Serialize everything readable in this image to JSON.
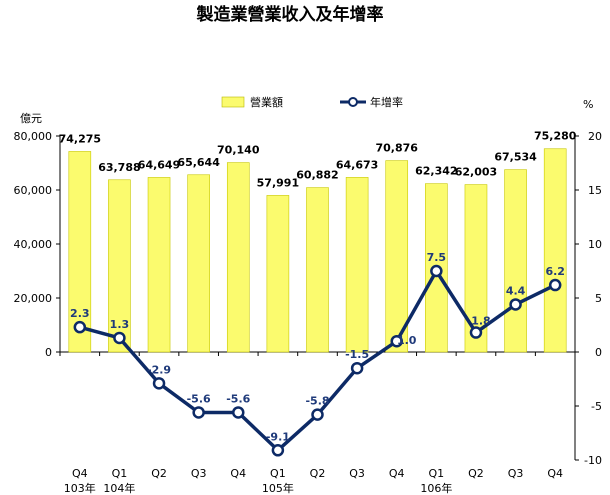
{
  "chart_data": {
    "type": "bar+line",
    "title": "製造業營業收入及年增率",
    "categories": [
      "Q4",
      "Q1",
      "Q2",
      "Q3",
      "Q4",
      "Q1",
      "Q2",
      "Q3",
      "Q4",
      "Q1",
      "Q2",
      "Q3",
      "Q4"
    ],
    "year_labels": [
      {
        "index": 0,
        "label": "103年"
      },
      {
        "index": 1,
        "label": "104年"
      },
      {
        "index": 5,
        "label": "105年"
      },
      {
        "index": 9,
        "label": "106年"
      }
    ],
    "series": [
      {
        "name": "營業額",
        "type": "bar",
        "axis": "left",
        "color": "#fbfb6e",
        "values": [
          74275,
          63788,
          64649,
          65644,
          70140,
          57991,
          60882,
          64673,
          70876,
          62342,
          62003,
          67534,
          75280
        ],
        "labels": [
          "74,275",
          "63,788",
          "64,649",
          "65,644",
          "70,140",
          "57,991",
          "60,882",
          "64,673",
          "70,876",
          "62,342",
          "62,003",
          "67,534",
          "75,280"
        ]
      },
      {
        "name": "年增率",
        "type": "line",
        "axis": "right",
        "color": "#0d2a66",
        "values": [
          2.3,
          1.3,
          -2.9,
          -5.6,
          -5.6,
          -9.1,
          -5.8,
          -1.5,
          1.0,
          7.5,
          1.8,
          4.4,
          6.2
        ],
        "labels": [
          "2.3",
          "1.3",
          "-2.9",
          "-5.6",
          "-5.6",
          "-9.1",
          "-5.8",
          "-1.5",
          "1.0",
          "7.5",
          "1.8",
          "4.4",
          "6.2"
        ]
      }
    ],
    "left_axis": {
      "unit": "億元",
      "ticks": [
        0,
        20000,
        40000,
        60000,
        80000
      ],
      "tick_labels": [
        "0",
        "20,000",
        "40,000",
        "60,000",
        "80,000"
      ]
    },
    "right_axis": {
      "unit": "%",
      "ylim": [
        -10,
        20
      ],
      "ticks": [
        -10,
        -5,
        0,
        5,
        10,
        15,
        20
      ],
      "tick_labels": [
        "-10",
        "-5",
        "0",
        "5",
        "10",
        "15",
        "20"
      ]
    },
    "legend_position": "top"
  }
}
